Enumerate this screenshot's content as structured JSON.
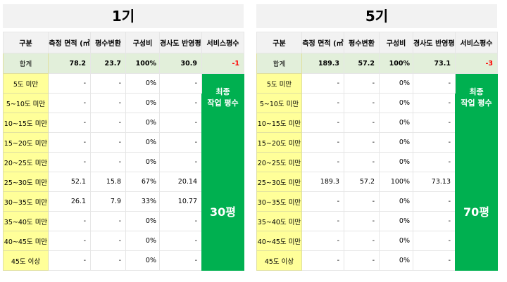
{
  "panels": [
    {
      "title": "1기",
      "headers": [
        "구분",
        "측정 면적 (㎡",
        "평수변환",
        "구성비",
        "경사도 반영평수",
        "서비스평수"
      ],
      "total": {
        "label": "합계",
        "area": "78.2",
        "pyeong": "23.7",
        "ratio": "100%",
        "applied": "30.9",
        "service": "-1"
      },
      "rows": [
        {
          "label": "5도 미만",
          "area": "-",
          "pyeong": "-",
          "ratio": "0%",
          "applied": "-"
        },
        {
          "label": "5~10도 미만",
          "area": "-",
          "pyeong": "-",
          "ratio": "0%",
          "applied": "-"
        },
        {
          "label": "10~15도 미만",
          "area": "-",
          "pyeong": "-",
          "ratio": "0%",
          "applied": "-"
        },
        {
          "label": "15~20도 미만",
          "area": "-",
          "pyeong": "-",
          "ratio": "0%",
          "applied": "-"
        },
        {
          "label": "20~25도 미만",
          "area": "-",
          "pyeong": "-",
          "ratio": "0%",
          "applied": "-"
        },
        {
          "label": "25~30도 미만",
          "area": "52.1",
          "pyeong": "15.8",
          "ratio": "67%",
          "applied": "20.14"
        },
        {
          "label": "30~35도 미만",
          "area": "26.1",
          "pyeong": "7.9",
          "ratio": "33%",
          "applied": "10.77"
        },
        {
          "label": "35~40도 미만",
          "area": "-",
          "pyeong": "-",
          "ratio": "0%",
          "applied": "-"
        },
        {
          "label": "40~45도 미만",
          "area": "-",
          "pyeong": "-",
          "ratio": "0%",
          "applied": "-"
        },
        {
          "label": "45도 이상",
          "area": "-",
          "pyeong": "-",
          "ratio": "0%",
          "applied": "-"
        }
      ],
      "final_label_1": "최종",
      "final_label_2": "작업 평수",
      "final_value": "30평"
    },
    {
      "title": "5기",
      "headers": [
        "구분",
        "측정 면적 (㎡",
        "평수변환",
        "구성비",
        "경사도 반영평수",
        "서비스평수"
      ],
      "total": {
        "label": "합계",
        "area": "189.3",
        "pyeong": "57.2",
        "ratio": "100%",
        "applied": "73.1",
        "service": "-3"
      },
      "rows": [
        {
          "label": "5도 미만",
          "area": "-",
          "pyeong": "-",
          "ratio": "0%",
          "applied": "-"
        },
        {
          "label": "5~10도 미만",
          "area": "-",
          "pyeong": "-",
          "ratio": "0%",
          "applied": "-"
        },
        {
          "label": "10~15도 미만",
          "area": "-",
          "pyeong": "-",
          "ratio": "0%",
          "applied": "-"
        },
        {
          "label": "15~20도 미만",
          "area": "-",
          "pyeong": "-",
          "ratio": "0%",
          "applied": "-"
        },
        {
          "label": "20~25도 미만",
          "area": "-",
          "pyeong": "-",
          "ratio": "0%",
          "applied": "-"
        },
        {
          "label": "25~30도 미만",
          "area": "189.3",
          "pyeong": "57.2",
          "ratio": "100%",
          "applied": "73.13"
        },
        {
          "label": "30~35도 미만",
          "area": "-",
          "pyeong": "-",
          "ratio": "0%",
          "applied": "-"
        },
        {
          "label": "35~40도 미만",
          "area": "-",
          "pyeong": "-",
          "ratio": "0%",
          "applied": "-"
        },
        {
          "label": "40~45도 미만",
          "area": "-",
          "pyeong": "-",
          "ratio": "0%",
          "applied": "-"
        },
        {
          "label": "45도 이상",
          "area": "-",
          "pyeong": "-",
          "ratio": "0%",
          "applied": "-"
        }
      ],
      "final_label_1": "최종",
      "final_label_2": "작업 평수",
      "final_value": "70평"
    }
  ]
}
